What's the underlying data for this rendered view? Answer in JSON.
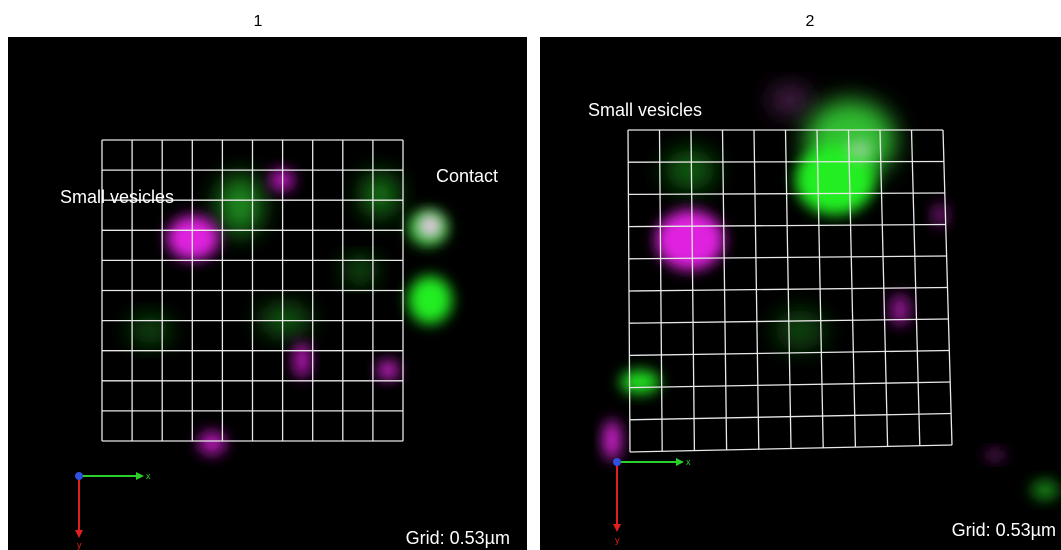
{
  "panels": [
    {
      "title": "1",
      "labels": [
        "Small vesicles",
        "Contact"
      ],
      "scale": "Grid: 0.53µm",
      "axes": {
        "x": "x",
        "y": "y"
      }
    },
    {
      "title": "2",
      "labels": [
        "Small vesicles"
      ],
      "scale": "Grid: 0.53µm",
      "axes": {
        "x": "x",
        "y": "y"
      }
    }
  ]
}
